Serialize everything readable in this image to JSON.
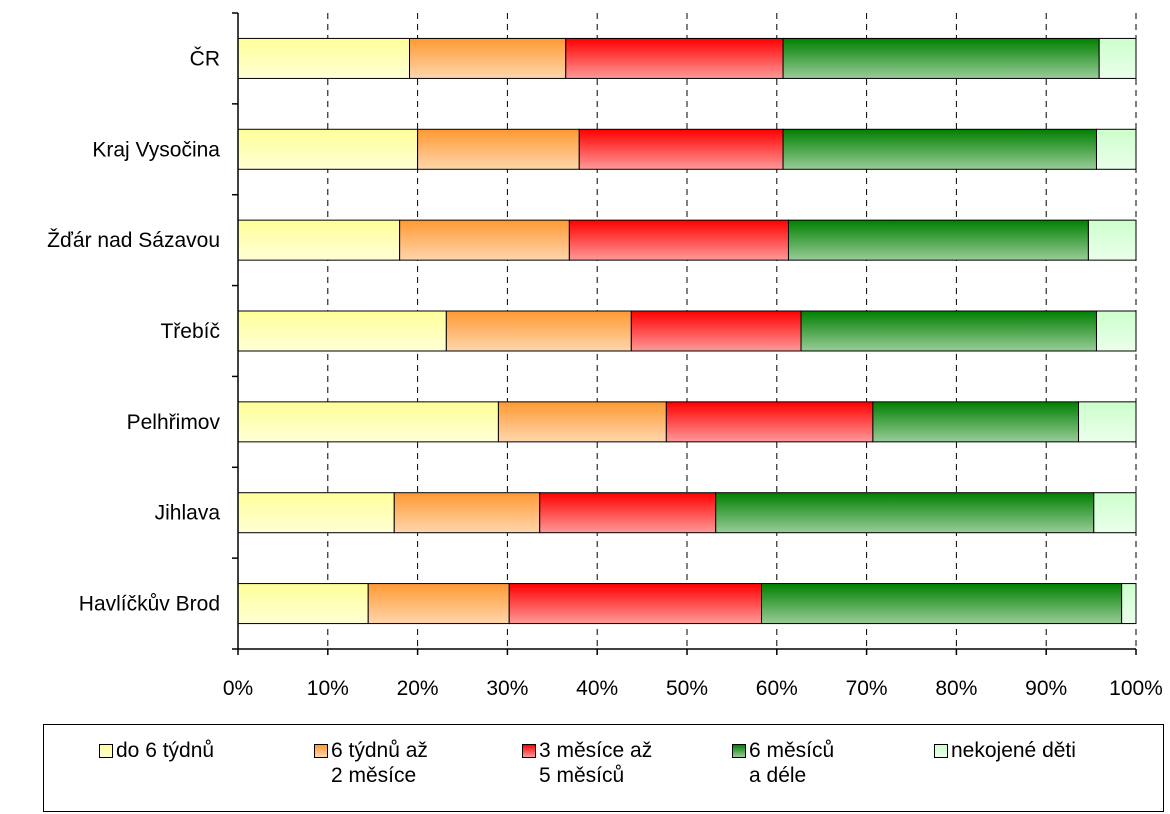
{
  "chart_data": {
    "type": "bar",
    "orientation": "horizontal",
    "stacked": "percent",
    "categories": [
      "ČR",
      "Kraj Vysočina",
      "Žďár nad Sázavou",
      "Třebíč",
      "Pelhřimov",
      "Jihlava",
      "Havlíčkův Brod"
    ],
    "series": [
      {
        "name": "do 6 týdnů",
        "color": "#ffff99",
        "values": [
          19.1,
          20.0,
          18.0,
          23.2,
          29.0,
          17.4,
          14.5
        ]
      },
      {
        "name": "6 týdnů až\n2 měsíce",
        "color": "#ff9933",
        "values": [
          17.4,
          18.0,
          18.9,
          20.6,
          18.7,
          16.2,
          15.7
        ]
      },
      {
        "name": "3 měsíce až\n5 měsíců",
        "color": "#ff0000",
        "values": [
          24.2,
          22.7,
          24.4,
          18.9,
          23.0,
          19.6,
          28.1
        ]
      },
      {
        "name": "6 měsíců\na déle",
        "color": "#008000",
        "values": [
          35.2,
          34.9,
          33.4,
          32.9,
          22.9,
          42.1,
          40.1
        ]
      },
      {
        "name": "nekojené děti",
        "color": "#ccffcc",
        "values": [
          4.1,
          4.4,
          5.3,
          4.4,
          6.4,
          4.7,
          1.6
        ]
      }
    ],
    "xticks": [
      "0%",
      "10%",
      "20%",
      "30%",
      "40%",
      "50%",
      "60%",
      "70%",
      "80%",
      "90%",
      "100%"
    ],
    "xlim": [
      0,
      100
    ],
    "grid": "vertical-dashed",
    "legend": "bottom"
  }
}
